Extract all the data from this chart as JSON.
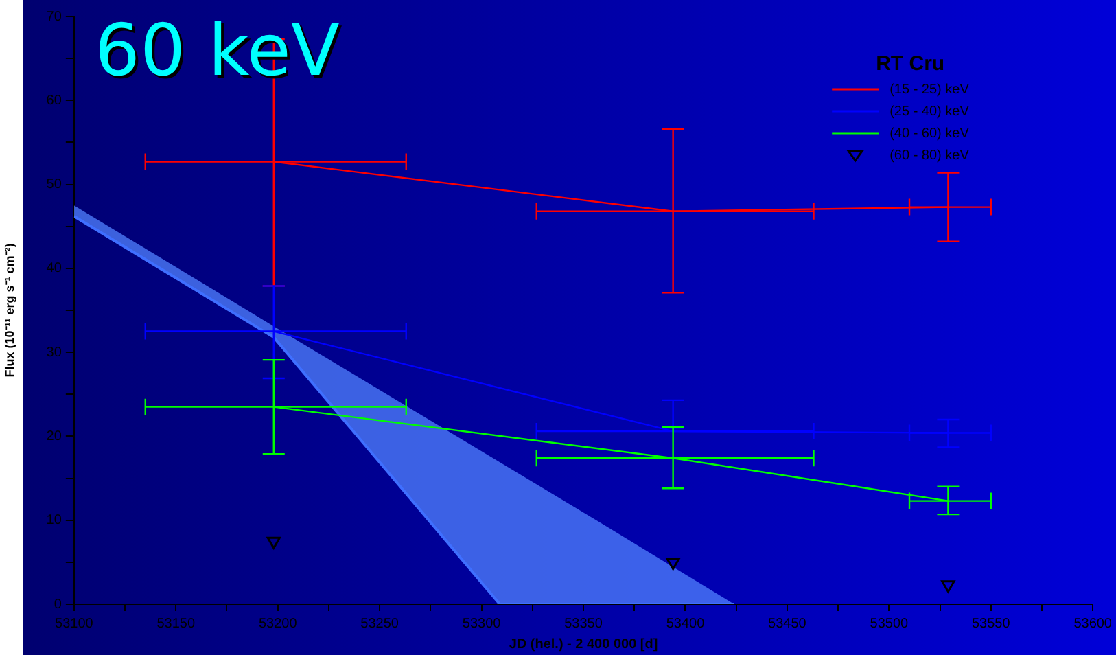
{
  "chart_data": {
    "type": "line",
    "xlabel": "JD (hel.) - 2 400 000 [d]",
    "ylabel": "Flux (10⁻¹¹ erg s⁻¹ cm⁻²)",
    "legend_title": "RT Cru",
    "legend": "top right",
    "annotations": [
      "60 keV"
    ],
    "x": [
      53198,
      53394,
      53529
    ],
    "series": [
      {
        "name": "(15 - 25) keV",
        "color": "#ff0000",
        "values": [
          52.7,
          46.8,
          47.3
        ],
        "errors": [
          [
            37.9,
            67.3
          ],
          [
            37.1,
            56.6
          ],
          [
            43.2,
            51.4
          ]
        ],
        "xerrors": [
          [
            53135,
            53263
          ],
          [
            53327,
            53463
          ],
          [
            53510,
            53550
          ]
        ]
      },
      {
        "name": "(25 - 40) keV",
        "color": "#0000ff",
        "values": [
          32.5,
          20.6,
          20.4
        ],
        "errors": [
          [
            26.9,
            37.9
          ],
          [
            21.0,
            24.3
          ],
          [
            18.7,
            22.0
          ]
        ],
        "xerrors": [
          [
            53135,
            53263
          ],
          [
            53327,
            53463
          ],
          [
            53510,
            53550
          ]
        ]
      },
      {
        "name": "(40 - 60) keV",
        "color": "#00ff00",
        "values": [
          23.5,
          17.4,
          12.3
        ],
        "errors": [
          [
            17.9,
            29.1
          ],
          [
            13.8,
            21.1
          ],
          [
            10.7,
            14.0
          ]
        ],
        "xerrors": [
          [
            53135,
            53263
          ],
          [
            53327,
            53463
          ],
          [
            53510,
            53550
          ]
        ]
      },
      {
        "name": "(60 - 80) keV",
        "type": "scatter",
        "marker": "triangle",
        "color": "#000000",
        "values": [
          7.5,
          5.0,
          2.3
        ]
      },
      {
        "color": "#3f6fff",
        "x": [
          53100,
          53198,
          53257,
          53309,
          53359,
          53424
        ],
        "values": [
          46.2,
          31.8,
          14.9,
          0,
          0,
          0
        ],
        "lower": [
          46.2,
          31.8,
          14.9,
          0,
          0,
          0
        ],
        "upper": [
          47.5,
          33.1,
          24.5,
          16.9,
          9.6,
          0
        ]
      }
    ],
    "xlim": [
      53100,
      53600
    ],
    "xticks": [
      53100,
      {
        "value": 53125,
        "label": null
      },
      53150,
      {
        "value": 53175,
        "label": null
      },
      53200,
      {
        "value": 53225,
        "label": null
      },
      53250,
      {
        "value": 53275,
        "label": null
      },
      53300,
      {
        "value": 53325,
        "label": null
      },
      53350,
      {
        "value": 53375,
        "label": null
      },
      53400,
      {
        "value": 53425,
        "label": null
      },
      53450,
      {
        "value": 53475,
        "label": null
      },
      53500,
      {
        "value": 53525,
        "label": null
      },
      53550,
      {
        "value": 53575,
        "label": null
      },
      53600
    ],
    "ylim": [
      0,
      70
    ],
    "yticks": [
      0,
      {
        "value": 5,
        "label": null
      },
      10,
      {
        "value": 15,
        "label": null
      },
      20,
      {
        "value": 25,
        "label": null
      },
      30,
      {
        "value": 35,
        "label": null
      },
      40,
      {
        "value": 45,
        "label": null
      },
      50,
      {
        "value": 55,
        "label": null
      },
      60,
      {
        "value": 65,
        "label": null
      },
      70
    ]
  }
}
